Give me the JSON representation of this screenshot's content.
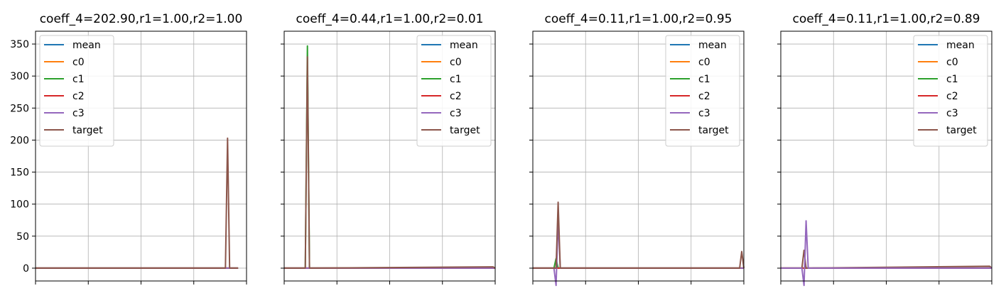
{
  "chart_data": [
    {
      "type": "line",
      "title": "coeff_4=202.90,r1=1.00,r2=1.00",
      "xlim": [
        0,
        100
      ],
      "ylim": [
        -20,
        370
      ],
      "yticks": [
        0,
        50,
        100,
        150,
        200,
        250,
        300,
        350
      ],
      "xticks": [
        0,
        25,
        50,
        75,
        100
      ],
      "show_ytick_labels": true,
      "show_xtick_labels": false,
      "grid": true,
      "legend": "upper-left",
      "series": [
        {
          "name": "mean",
          "color": "#1f77b4",
          "x": [
            0,
            96
          ],
          "y": [
            0,
            0
          ]
        },
        {
          "name": "c0",
          "color": "#ff7f0e",
          "x": [
            0,
            96
          ],
          "y": [
            0,
            0
          ]
        },
        {
          "name": "c1",
          "color": "#2ca02c",
          "x": [
            0,
            96
          ],
          "y": [
            0,
            0
          ]
        },
        {
          "name": "c2",
          "color": "#d62728",
          "x": [
            0,
            96
          ],
          "y": [
            0,
            0
          ]
        },
        {
          "name": "c3",
          "color": "#9467bd",
          "x": [
            0,
            96
          ],
          "y": [
            0,
            0
          ]
        },
        {
          "name": "target",
          "color": "#8c564b",
          "x": [
            0,
            89,
            90,
            91,
            92,
            96
          ],
          "y": [
            0,
            0,
            0,
            203,
            0,
            0
          ]
        }
      ]
    },
    {
      "type": "line",
      "title": "coeff_4=0.44,r1=1.00,r2=0.01",
      "xlim": [
        0,
        100
      ],
      "ylim": [
        -20,
        370
      ],
      "yticks": [
        0,
        50,
        100,
        150,
        200,
        250,
        300,
        350
      ],
      "xticks": [
        0,
        25,
        50,
        75,
        100
      ],
      "show_ytick_labels": false,
      "show_xtick_labels": false,
      "grid": true,
      "legend": "upper-right",
      "series": [
        {
          "name": "mean",
          "color": "#1f77b4",
          "x": [
            0,
            100
          ],
          "y": [
            0,
            0
          ]
        },
        {
          "name": "c0",
          "color": "#ff7f0e",
          "x": [
            0,
            100
          ],
          "y": [
            0,
            0
          ]
        },
        {
          "name": "c1",
          "color": "#2ca02c",
          "x": [
            0,
            10,
            11,
            12,
            100
          ],
          "y": [
            0,
            0,
            347,
            0,
            0
          ]
        },
        {
          "name": "c2",
          "color": "#d62728",
          "x": [
            0,
            100
          ],
          "y": [
            0,
            0
          ]
        },
        {
          "name": "c3",
          "color": "#9467bd",
          "x": [
            0,
            100
          ],
          "y": [
            0,
            0
          ]
        },
        {
          "name": "target",
          "color": "#8c564b",
          "x": [
            0,
            10,
            11,
            12,
            99,
            100
          ],
          "y": [
            0,
            0,
            330,
            0,
            2,
            0
          ]
        }
      ]
    },
    {
      "type": "line",
      "title": "coeff_4=0.11,r1=1.00,r2=0.95",
      "xlim": [
        0,
        100
      ],
      "ylim": [
        -20,
        370
      ],
      "yticks": [
        0,
        50,
        100,
        150,
        200,
        250,
        300,
        350
      ],
      "xticks": [
        0,
        25,
        50,
        75,
        100
      ],
      "show_ytick_labels": false,
      "show_xtick_labels": false,
      "grid": true,
      "legend": "upper-right",
      "series": [
        {
          "name": "mean",
          "color": "#1f77b4",
          "x": [
            0,
            100
          ],
          "y": [
            0,
            0
          ]
        },
        {
          "name": "c0",
          "color": "#ff7f0e",
          "x": [
            0,
            100
          ],
          "y": [
            0,
            0
          ]
        },
        {
          "name": "c1",
          "color": "#2ca02c",
          "x": [
            0,
            10,
            11,
            12,
            100
          ],
          "y": [
            0,
            0,
            15,
            0,
            0
          ]
        },
        {
          "name": "c2",
          "color": "#d62728",
          "x": [
            0,
            100
          ],
          "y": [
            0,
            0
          ]
        },
        {
          "name": "c3",
          "color": "#9467bd",
          "x": [
            0,
            10,
            11,
            12,
            13,
            100
          ],
          "y": [
            0,
            0,
            -27,
            75,
            0,
            0
          ]
        },
        {
          "name": "target",
          "color": "#8c564b",
          "x": [
            0,
            11,
            12,
            13,
            98,
            99,
            100
          ],
          "y": [
            0,
            0,
            103,
            0,
            0,
            26,
            0
          ]
        }
      ]
    },
    {
      "type": "line",
      "title": "coeff_4=0.11,r1=1.00,r2=0.89",
      "xlim": [
        0,
        100
      ],
      "ylim": [
        -20,
        370
      ],
      "yticks": [
        0,
        50,
        100,
        150,
        200,
        250,
        300,
        350
      ],
      "xticks": [
        0,
        25,
        50,
        75,
        100
      ],
      "show_ytick_labels": false,
      "show_xtick_labels": false,
      "grid": true,
      "legend": "upper-right",
      "series": [
        {
          "name": "mean",
          "color": "#1f77b4",
          "x": [
            0,
            100
          ],
          "y": [
            0,
            0
          ]
        },
        {
          "name": "c0",
          "color": "#ff7f0e",
          "x": [
            0,
            100
          ],
          "y": [
            0,
            0
          ]
        },
        {
          "name": "c1",
          "color": "#2ca02c",
          "x": [
            0,
            100
          ],
          "y": [
            0,
            0
          ]
        },
        {
          "name": "c2",
          "color": "#d62728",
          "x": [
            0,
            100
          ],
          "y": [
            0,
            0
          ]
        },
        {
          "name": "target",
          "color": "#8c564b",
          "x": [
            0,
            10,
            11,
            12,
            99,
            100
          ],
          "y": [
            0,
            0,
            28,
            0,
            3,
            0
          ]
        },
        {
          "name": "c3",
          "color": "#9467bd",
          "x": [
            0,
            10,
            11,
            12,
            13,
            100
          ],
          "y": [
            0,
            0,
            -27,
            74,
            0,
            0
          ]
        }
      ],
      "legend_order": [
        "mean",
        "c0",
        "c1",
        "c2",
        "c3",
        "target"
      ]
    }
  ]
}
